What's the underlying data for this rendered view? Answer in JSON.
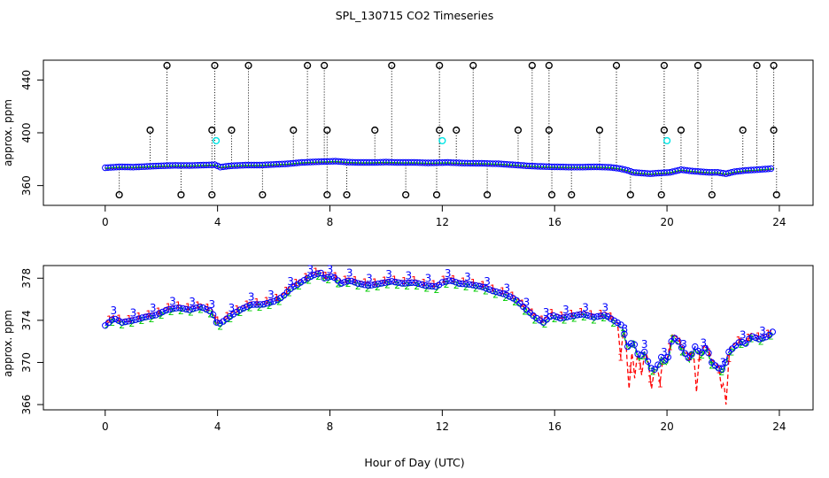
{
  "figure": {
    "title": "SPL_130715  CO2 Timeseries",
    "xlabel": "Hour of Day (UTC)"
  },
  "chart_data": [
    {
      "type": "scatter",
      "ylabel": "approx. ppm",
      "xlim": [
        -2.2,
        25.2
      ],
      "ylim": [
        345,
        455
      ],
      "xticks": [
        0,
        4,
        8,
        12,
        16,
        20,
        24
      ],
      "yticks": [
        360,
        400,
        440
      ],
      "grid": false,
      "legend": "none",
      "colors": {
        "series1": "#ff0000",
        "series2": "#00cc00",
        "series3": "#0000ff",
        "markers": "#000000",
        "cyan": "#00e5e5",
        "droplines": "#000000"
      },
      "baseline_series": {
        "x": [
          0,
          0.5,
          1,
          1.5,
          2,
          2.5,
          3,
          3.5,
          3.9,
          4.1,
          4.5,
          5,
          5.5,
          6,
          6.5,
          7,
          7.5,
          7.8,
          8.2,
          8.6,
          9,
          9.5,
          10,
          10.5,
          11,
          11.5,
          12.2,
          12.8,
          13.5,
          14,
          14.5,
          15,
          15.5,
          16,
          16.5,
          17,
          17.5,
          18,
          18.3,
          18.6,
          18.8,
          19.1,
          19.4,
          19.7,
          20.1,
          20.5,
          20.9,
          21.2,
          21.5,
          21.8,
          22.1,
          22.4,
          22.8,
          23.2,
          23.8
        ],
        "y": [
          373.5,
          374.2,
          374,
          374.5,
          375,
          375.3,
          375.2,
          375.5,
          375.8,
          374,
          375,
          375.5,
          375.5,
          376,
          376.5,
          377.5,
          378,
          378.2,
          378.5,
          377.8,
          377.5,
          377.5,
          377.8,
          377.5,
          377.5,
          377.2,
          377.5,
          377,
          376.8,
          376.5,
          375.8,
          375,
          374.5,
          374.2,
          374,
          374,
          374.2,
          373.8,
          373,
          371.5,
          370,
          369.5,
          369,
          369.5,
          370,
          372,
          371,
          370.5,
          370,
          370,
          369,
          370.5,
          371.5,
          372,
          373
        ]
      },
      "spikes_high": {
        "x": [
          2.2,
          3.9,
          5.1,
          7.2,
          7.8,
          10.2,
          11.9,
          13.1,
          15.2,
          15.8,
          18.2,
          19.9,
          21.1,
          23.2,
          23.8
        ],
        "y": 451
      },
      "spikes_mid": {
        "x": [
          1.6,
          3.8,
          4.5,
          6.7,
          7.9,
          9.6,
          11.9,
          12.5,
          14.7,
          15.8,
          17.6,
          19.9,
          20.5,
          22.7,
          23.8
        ],
        "y": 402
      },
      "spikes_low": {
        "x": [
          0.5,
          2.7,
          3.8,
          5.6,
          7.9,
          8.6,
          10.7,
          11.8,
          13.6,
          15.9,
          16.6,
          18.7,
          19.8,
          21.6,
          23.9
        ],
        "y": 353
      },
      "cyan_points": [
        {
          "x": 3.95,
          "y": 394
        },
        {
          "x": 12.0,
          "y": 394
        },
        {
          "x": 20.0,
          "y": 394
        }
      ]
    },
    {
      "type": "line",
      "ylabel": "approx. ppm",
      "xlim": [
        -2.2,
        25.2
      ],
      "ylim": [
        365.5,
        379.2
      ],
      "xticks": [
        0,
        4,
        8,
        12,
        16,
        20,
        24
      ],
      "yticks": [
        366,
        370,
        374,
        378
      ],
      "grid": false,
      "legend": "none",
      "markers": [
        "1",
        "2",
        "3"
      ],
      "colors": {
        "series1": "#ff0000",
        "series2": "#00cc00",
        "series3": "#0000ff",
        "circles": "#0000ff"
      },
      "series3_path": {
        "x": [
          0,
          0.3,
          0.6,
          1,
          1.4,
          1.8,
          2.2,
          2.6,
          3,
          3.4,
          3.8,
          3.95,
          4.1,
          4.4,
          4.8,
          5.2,
          5.6,
          6,
          6.3,
          6.6,
          6.9,
          7.2,
          7.5,
          7.7,
          7.8,
          8.1,
          8.4,
          8.7,
          9,
          9.4,
          9.8,
          10.2,
          10.6,
          11,
          11.4,
          11.8,
          12.0,
          12.3,
          12.6,
          13,
          13.4,
          13.8,
          14.2,
          14.6,
          15,
          15.3,
          15.6,
          15.9,
          16.2,
          16.6,
          17,
          17.4,
          17.8,
          18.1,
          18.4,
          18.6,
          18.8,
          19.0,
          19.2,
          19.4,
          19.6,
          19.8,
          20.0,
          20.2,
          20.4,
          20.6,
          20.8,
          21.0,
          21.2,
          21.4,
          21.6,
          21.8,
          22.0,
          22.2,
          22.4,
          22.6,
          22.8,
          23.0,
          23.3,
          23.6,
          23.8
        ],
        "y": [
          373.5,
          374.2,
          373.8,
          374,
          374.3,
          374.5,
          375,
          375.2,
          375,
          375.3,
          374.8,
          373.8,
          373.7,
          374.3,
          375,
          375.5,
          375.5,
          375.8,
          376.2,
          377,
          377.5,
          378,
          378.4,
          378.5,
          378,
          378.2,
          377.5,
          377.8,
          377.5,
          377.3,
          377.5,
          377.7,
          377.5,
          377.6,
          377.3,
          377.2,
          377.6,
          377.8,
          377.5,
          377.4,
          377.2,
          376.8,
          376.5,
          376,
          375,
          374.3,
          373.8,
          374.5,
          374.2,
          374.4,
          374.6,
          374.3,
          374.5,
          374,
          373.5,
          371.5,
          372,
          370.5,
          371,
          369.5,
          369.3,
          370.5,
          370,
          372.5,
          372,
          371,
          370.3,
          371.5,
          370.8,
          371.5,
          370,
          369.5,
          369.3,
          371,
          371.5,
          372,
          371.8,
          372.5,
          372.2,
          372.5,
          373
        ]
      },
      "series1_dips": [
        {
          "x": 18.35,
          "y": 370.5
        },
        {
          "x": 18.65,
          "y": 367.5
        },
        {
          "x": 18.85,
          "y": 368.5
        },
        {
          "x": 19.1,
          "y": 368.8
        },
        {
          "x": 19.45,
          "y": 367.5
        },
        {
          "x": 19.75,
          "y": 368
        },
        {
          "x": 21.05,
          "y": 367.2
        },
        {
          "x": 21.95,
          "y": 367.5
        },
        {
          "x": 22.1,
          "y": 366
        }
      ]
    }
  ]
}
